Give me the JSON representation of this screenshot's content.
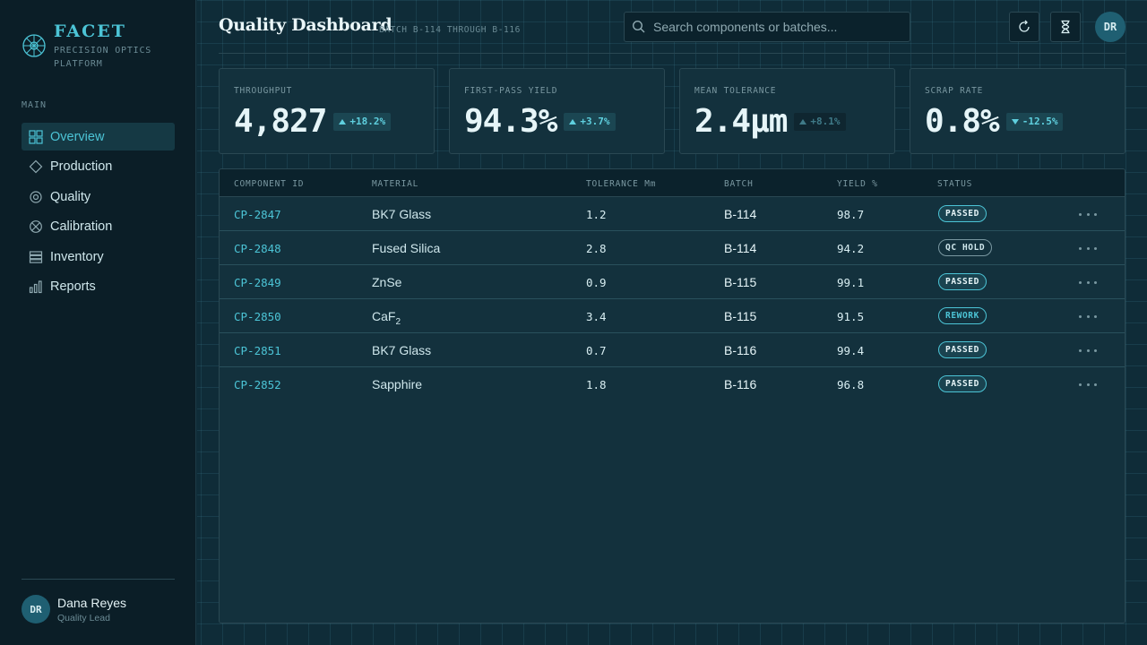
{
  "brand": {
    "name": "FACET",
    "subtitle": "PRECISION OPTICS PLATFORM"
  },
  "nav": {
    "section": "MAIN",
    "items": [
      {
        "label": "Overview",
        "icon": "grid-icon",
        "active": true
      },
      {
        "label": "Production",
        "icon": "diamond-icon"
      },
      {
        "label": "Quality",
        "icon": "target-icon"
      },
      {
        "label": "Calibration",
        "icon": "crosshair-icon"
      },
      {
        "label": "Inventory",
        "icon": "stack-icon"
      },
      {
        "label": "Reports",
        "icon": "bar-chart-icon"
      }
    ]
  },
  "user": {
    "initials": "DR",
    "name": "Dana Reyes",
    "role": "Quality Lead"
  },
  "header": {
    "title": "Quality Dashboard",
    "subtitle": "BATCH B-114 THROUGH B-116",
    "search_placeholder": "Search components or batches...",
    "avatar": "DR"
  },
  "kpis": [
    {
      "label": "THROUGHPUT",
      "value": "4,827",
      "delta": "+18.2%",
      "direction": "up"
    },
    {
      "label": "FIRST-PASS YIELD",
      "value": "94.3%",
      "delta": "+3.7%",
      "direction": "up"
    },
    {
      "label": "MEAN TOLERANCE",
      "value": "2.4μm",
      "delta": "+8.1%",
      "direction": "up"
    },
    {
      "label": "SCRAP RATE",
      "value": "0.8%",
      "delta": "-12.5%",
      "direction": "down"
    }
  ],
  "table": {
    "columns": [
      "COMPONENT ID",
      "MATERIAL",
      "TOLERANCE Μm",
      "BATCH",
      "YIELD %",
      "STATUS"
    ],
    "rows": [
      {
        "id": "CP-2847",
        "material": "BK7 Glass",
        "tolerance": "1.2",
        "batch": "B-114",
        "yield": "98.7",
        "status": "PASSED"
      },
      {
        "id": "CP-2848",
        "material": "Fused Silica",
        "tolerance": "2.8",
        "batch": "B-114",
        "yield": "94.2",
        "status": "QC HOLD"
      },
      {
        "id": "CP-2849",
        "material": "ZnSe",
        "tolerance": "0.9",
        "batch": "B-115",
        "yield": "99.1",
        "status": "PASSED"
      },
      {
        "id": "CP-2850",
        "material": "CaF",
        "material_sub": "2",
        "tolerance": "3.4",
        "batch": "B-115",
        "yield": "91.5",
        "status": "REWORK"
      },
      {
        "id": "CP-2851",
        "material": "BK7 Glass",
        "tolerance": "0.7",
        "batch": "B-116",
        "yield": "99.4",
        "status": "PASSED"
      },
      {
        "id": "CP-2852",
        "material": "Sapphire",
        "tolerance": "1.8",
        "batch": "B-116",
        "yield": "96.8",
        "status": "PASSED"
      }
    ]
  },
  "colors": {
    "accent": "#4cc4d6",
    "background": "#0f2c38",
    "sidebar": "#0b1e27"
  }
}
